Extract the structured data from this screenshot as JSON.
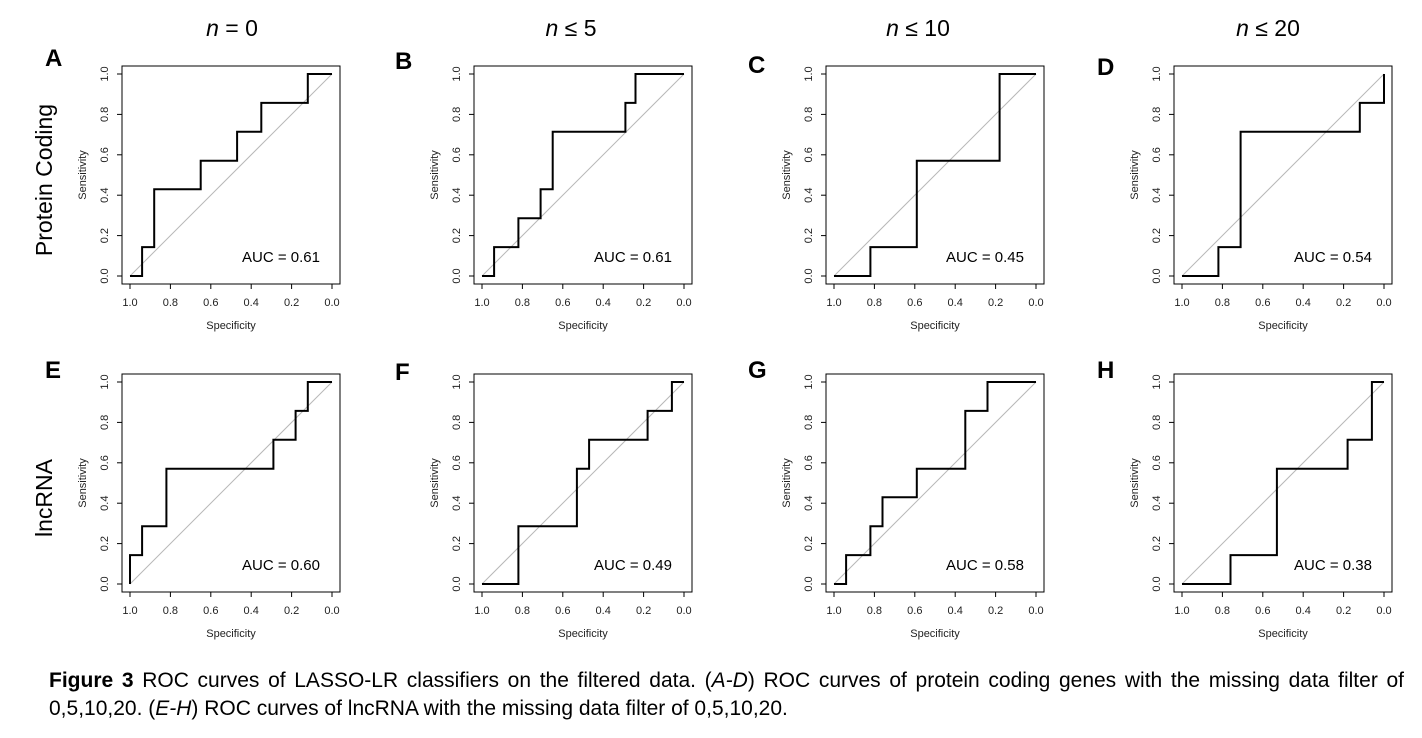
{
  "column_titles": [
    {
      "var": "n",
      "rest": " = 0"
    },
    {
      "var": "n",
      "rest": " ≤ 5"
    },
    {
      "var": "n",
      "rest": " ≤ 10"
    },
    {
      "var": "n",
      "rest": " ≤ 20"
    }
  ],
  "row_titles": [
    "Protein Coding",
    "lncRNA"
  ],
  "caption": {
    "label": "Figure 3",
    "text1": " ROC curves of LASSO-LR classifiers on the filtered data. (",
    "range1": "A-D",
    "text2": ") ROC curves of protein coding genes with the missing data filter of 0,5,10,20. (",
    "range2": "E-H",
    "text3": ") ROC curves of lncRNA with the missing data filter of 0,5,10,20."
  },
  "chart_data": [
    {
      "panel": "A",
      "type": "line",
      "xlabel": "Specificity",
      "ylabel": "Sensitivity",
      "xlim": [
        1.0,
        0.0
      ],
      "ylim": [
        0.0,
        1.0
      ],
      "reversed_x": true,
      "diagonal_reference": true,
      "x_ticks": [
        "1.0",
        "0.8",
        "0.6",
        "0.4",
        "0.2",
        "0.0"
      ],
      "y_ticks": [
        "0.0",
        "0.2",
        "0.4",
        "0.6",
        "0.8",
        "1.0"
      ],
      "annotation": "AUC = 0.61",
      "x": [
        1.0,
        0.94,
        0.94,
        0.88,
        0.88,
        0.65,
        0.65,
        0.47,
        0.47,
        0.35,
        0.35,
        0.12,
        0.12,
        0.0
      ],
      "y": [
        0.0,
        0.0,
        0.143,
        0.143,
        0.429,
        0.429,
        0.571,
        0.571,
        0.714,
        0.714,
        0.857,
        0.857,
        1.0,
        1.0
      ]
    },
    {
      "panel": "B",
      "type": "line",
      "xlabel": "Specificity",
      "ylabel": "Sensitivity",
      "xlim": [
        1.0,
        0.0
      ],
      "ylim": [
        0.0,
        1.0
      ],
      "reversed_x": true,
      "diagonal_reference": true,
      "x_ticks": [
        "1.0",
        "0.8",
        "0.6",
        "0.4",
        "0.2",
        "0.0"
      ],
      "y_ticks": [
        "0.0",
        "0.2",
        "0.4",
        "0.6",
        "0.8",
        "1.0"
      ],
      "annotation": "AUC = 0.61",
      "x": [
        1.0,
        0.94,
        0.94,
        0.82,
        0.82,
        0.71,
        0.71,
        0.65,
        0.65,
        0.29,
        0.29,
        0.24,
        0.24,
        0.0
      ],
      "y": [
        0.0,
        0.0,
        0.143,
        0.143,
        0.286,
        0.286,
        0.429,
        0.429,
        0.714,
        0.714,
        0.857,
        0.857,
        1.0,
        1.0
      ]
    },
    {
      "panel": "C",
      "type": "line",
      "xlabel": "Specificity",
      "ylabel": "Sensitivity",
      "xlim": [
        1.0,
        0.0
      ],
      "ylim": [
        0.0,
        1.0
      ],
      "reversed_x": true,
      "diagonal_reference": true,
      "x_ticks": [
        "1.0",
        "0.8",
        "0.6",
        "0.4",
        "0.2",
        "0.0"
      ],
      "y_ticks": [
        "0.0",
        "0.2",
        "0.4",
        "0.6",
        "0.8",
        "1.0"
      ],
      "annotation": "AUC = 0.45",
      "x": [
        1.0,
        0.82,
        0.82,
        0.59,
        0.59,
        0.18,
        0.18,
        0.0
      ],
      "y": [
        0.0,
        0.0,
        0.143,
        0.143,
        0.571,
        0.571,
        1.0,
        1.0
      ]
    },
    {
      "panel": "D",
      "type": "line",
      "xlabel": "Specificity",
      "ylabel": "Sensitivity",
      "xlim": [
        1.0,
        0.0
      ],
      "ylim": [
        0.0,
        1.0
      ],
      "reversed_x": true,
      "diagonal_reference": true,
      "x_ticks": [
        "1.0",
        "0.8",
        "0.6",
        "0.4",
        "0.2",
        "0.0"
      ],
      "y_ticks": [
        "0.0",
        "0.2",
        "0.4",
        "0.6",
        "0.8",
        "1.0"
      ],
      "annotation": "AUC = 0.54",
      "x": [
        1.0,
        0.82,
        0.82,
        0.71,
        0.71,
        0.12,
        0.12,
        0.0,
        0.0
      ],
      "y": [
        0.0,
        0.0,
        0.143,
        0.143,
        0.714,
        0.714,
        0.857,
        0.857,
        1.0
      ]
    },
    {
      "panel": "E",
      "type": "line",
      "xlabel": "Specificity",
      "ylabel": "Sensitivity",
      "xlim": [
        1.0,
        0.0
      ],
      "ylim": [
        0.0,
        1.0
      ],
      "reversed_x": true,
      "diagonal_reference": true,
      "x_ticks": [
        "1.0",
        "0.8",
        "0.6",
        "0.4",
        "0.2",
        "0.0"
      ],
      "y_ticks": [
        "0.0",
        "0.2",
        "0.4",
        "0.6",
        "0.8",
        "1.0"
      ],
      "annotation": "AUC = 0.60",
      "x": [
        1.0,
        1.0,
        0.94,
        0.94,
        0.82,
        0.82,
        0.29,
        0.29,
        0.18,
        0.18,
        0.12,
        0.12,
        0.0
      ],
      "y": [
        0.0,
        0.143,
        0.143,
        0.286,
        0.286,
        0.571,
        0.571,
        0.714,
        0.714,
        0.857,
        0.857,
        1.0,
        1.0
      ]
    },
    {
      "panel": "F",
      "type": "line",
      "xlabel": "Specificity",
      "ylabel": "Sensitivity",
      "xlim": [
        1.0,
        0.0
      ],
      "ylim": [
        0.0,
        1.0
      ],
      "reversed_x": true,
      "diagonal_reference": true,
      "x_ticks": [
        "1.0",
        "0.8",
        "0.6",
        "0.4",
        "0.2",
        "0.0"
      ],
      "y_ticks": [
        "0.0",
        "0.2",
        "0.4",
        "0.6",
        "0.8",
        "1.0"
      ],
      "annotation": "AUC = 0.49",
      "x": [
        1.0,
        0.82,
        0.82,
        0.53,
        0.53,
        0.47,
        0.47,
        0.18,
        0.18,
        0.06,
        0.06,
        0.0
      ],
      "y": [
        0.0,
        0.0,
        0.286,
        0.286,
        0.571,
        0.571,
        0.714,
        0.714,
        0.857,
        0.857,
        1.0,
        1.0
      ]
    },
    {
      "panel": "G",
      "type": "line",
      "xlabel": "Specificity",
      "ylabel": "Sensitivity",
      "xlim": [
        1.0,
        0.0
      ],
      "ylim": [
        0.0,
        1.0
      ],
      "reversed_x": true,
      "diagonal_reference": true,
      "x_ticks": [
        "1.0",
        "0.8",
        "0.6",
        "0.4",
        "0.2",
        "0.0"
      ],
      "y_ticks": [
        "0.0",
        "0.2",
        "0.4",
        "0.6",
        "0.8",
        "1.0"
      ],
      "annotation": "AUC = 0.58",
      "x": [
        1.0,
        0.94,
        0.94,
        0.82,
        0.82,
        0.76,
        0.76,
        0.59,
        0.59,
        0.35,
        0.35,
        0.24,
        0.24,
        0.0
      ],
      "y": [
        0.0,
        0.0,
        0.143,
        0.143,
        0.286,
        0.286,
        0.429,
        0.429,
        0.571,
        0.571,
        0.857,
        0.857,
        1.0,
        1.0
      ]
    },
    {
      "panel": "H",
      "type": "line",
      "xlabel": "Specificity",
      "ylabel": "Sensitivity",
      "xlim": [
        1.0,
        0.0
      ],
      "ylim": [
        0.0,
        1.0
      ],
      "reversed_x": true,
      "diagonal_reference": true,
      "x_ticks": [
        "1.0",
        "0.8",
        "0.6",
        "0.4",
        "0.2",
        "0.0"
      ],
      "y_ticks": [
        "0.0",
        "0.2",
        "0.4",
        "0.6",
        "0.8",
        "1.0"
      ],
      "annotation": "AUC = 0.38",
      "x": [
        1.0,
        0.76,
        0.76,
        0.53,
        0.53,
        0.18,
        0.18,
        0.06,
        0.06,
        0.0
      ],
      "y": [
        0.0,
        0.0,
        0.143,
        0.143,
        0.571,
        0.571,
        0.714,
        0.714,
        1.0,
        1.0
      ]
    }
  ]
}
